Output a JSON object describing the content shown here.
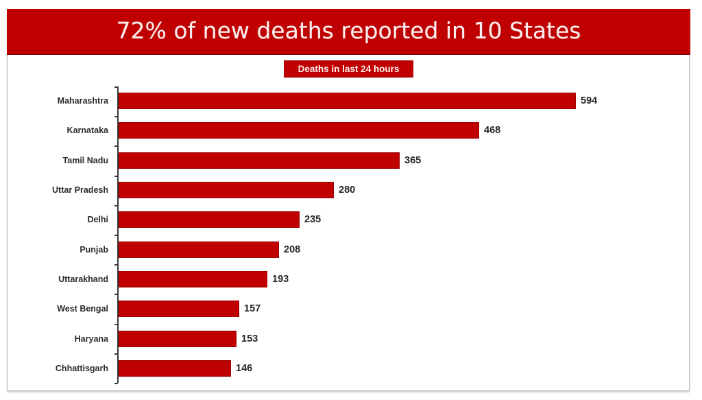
{
  "header": {
    "title": "72% of new deaths reported in 10 States"
  },
  "legend": {
    "label": "Deaths in last 24 hours"
  },
  "colors": {
    "bar": "#c00000",
    "bar_border": "#9e0000",
    "banner": "#c00000",
    "text": "#262626"
  },
  "chart_data": {
    "type": "bar",
    "orientation": "horizontal",
    "title": "72% of new deaths reported in 10 States",
    "subtitle": "Deaths in last 24 hours",
    "xlabel": "",
    "ylabel": "",
    "categories": [
      "Maharashtra",
      "Karnataka",
      "Tamil Nadu",
      "Uttar Pradesh",
      "Delhi",
      "Punjab",
      "Uttarakhand",
      "West Bengal",
      "Haryana",
      "Chhattisgarh"
    ],
    "series": [
      {
        "name": "Deaths in last 24 hours",
        "values": [
          594,
          468,
          365,
          280,
          235,
          208,
          193,
          157,
          153,
          146
        ]
      }
    ],
    "data_labels": [
      "594",
      "468",
      "365",
      "280",
      "235",
      "208",
      "193",
      "157",
      "153",
      "146"
    ],
    "xlim": [
      0,
      594
    ],
    "grid": false,
    "legend_position": "top-center"
  }
}
